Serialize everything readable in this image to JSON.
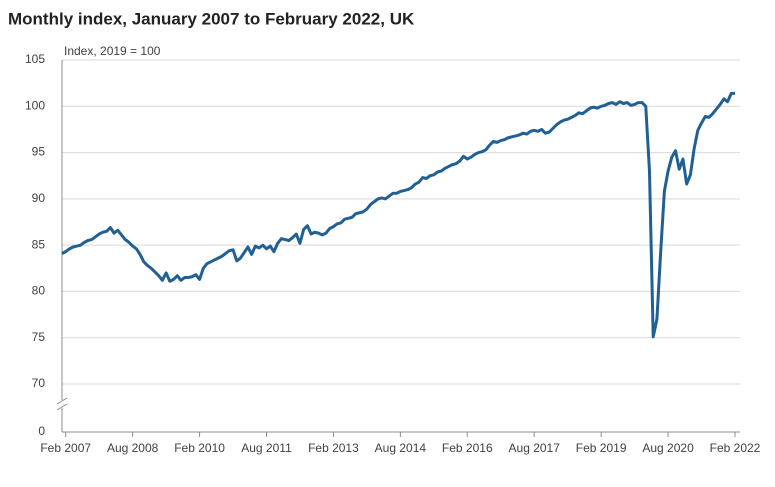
{
  "chart_data": {
    "type": "line",
    "title": "Monthly index, January 2007 to February 2022, UK",
    "y_label": "Index, 2019 = 100",
    "color": "#206095",
    "grid": true,
    "axis_break": true,
    "ylim": [
      0,
      105
    ],
    "yticks": [
      0,
      70,
      75,
      80,
      85,
      90,
      95,
      100,
      105
    ],
    "xticks": [
      {
        "value": "2007-02",
        "label": "Feb 2007"
      },
      {
        "value": "2008-08",
        "label": "Aug 2008"
      },
      {
        "value": "2010-02",
        "label": "Feb 2010"
      },
      {
        "value": "2011-08",
        "label": "Aug 2011"
      },
      {
        "value": "2013-02",
        "label": "Feb 2013"
      },
      {
        "value": "2014-08",
        "label": "Aug 2014"
      },
      {
        "value": "2016-02",
        "label": "Feb 2016"
      },
      {
        "value": "2017-08",
        "label": "Aug 2017"
      },
      {
        "value": "2019-02",
        "label": "Feb 2019"
      },
      {
        "value": "2020-08",
        "label": "Aug 2020"
      },
      {
        "value": "2022-02",
        "label": "Feb 2022"
      }
    ],
    "x": [
      "2007-01",
      "2007-02",
      "2007-03",
      "2007-04",
      "2007-05",
      "2007-06",
      "2007-07",
      "2007-08",
      "2007-09",
      "2007-10",
      "2007-11",
      "2007-12",
      "2008-01",
      "2008-02",
      "2008-03",
      "2008-04",
      "2008-05",
      "2008-06",
      "2008-07",
      "2008-08",
      "2008-09",
      "2008-10",
      "2008-11",
      "2008-12",
      "2009-01",
      "2009-02",
      "2009-03",
      "2009-04",
      "2009-05",
      "2009-06",
      "2009-07",
      "2009-08",
      "2009-09",
      "2009-10",
      "2009-11",
      "2009-12",
      "2010-01",
      "2010-02",
      "2010-03",
      "2010-04",
      "2010-05",
      "2010-06",
      "2010-07",
      "2010-08",
      "2010-09",
      "2010-10",
      "2010-11",
      "2010-12",
      "2011-01",
      "2011-02",
      "2011-03",
      "2011-04",
      "2011-05",
      "2011-06",
      "2011-07",
      "2011-08",
      "2011-09",
      "2011-10",
      "2011-11",
      "2011-12",
      "2012-01",
      "2012-02",
      "2012-03",
      "2012-04",
      "2012-05",
      "2012-06",
      "2012-07",
      "2012-08",
      "2012-09",
      "2012-10",
      "2012-11",
      "2012-12",
      "2013-01",
      "2013-02",
      "2013-03",
      "2013-04",
      "2013-05",
      "2013-06",
      "2013-07",
      "2013-08",
      "2013-09",
      "2013-10",
      "2013-11",
      "2013-12",
      "2014-01",
      "2014-02",
      "2014-03",
      "2014-04",
      "2014-05",
      "2014-06",
      "2014-07",
      "2014-08",
      "2014-09",
      "2014-10",
      "2014-11",
      "2014-12",
      "2015-01",
      "2015-02",
      "2015-03",
      "2015-04",
      "2015-05",
      "2015-06",
      "2015-07",
      "2015-08",
      "2015-09",
      "2015-10",
      "2015-11",
      "2015-12",
      "2016-01",
      "2016-02",
      "2016-03",
      "2016-04",
      "2016-05",
      "2016-06",
      "2016-07",
      "2016-08",
      "2016-09",
      "2016-10",
      "2016-11",
      "2016-12",
      "2017-01",
      "2017-02",
      "2017-03",
      "2017-04",
      "2017-05",
      "2017-06",
      "2017-07",
      "2017-08",
      "2017-09",
      "2017-10",
      "2017-11",
      "2017-12",
      "2018-01",
      "2018-02",
      "2018-03",
      "2018-04",
      "2018-05",
      "2018-06",
      "2018-07",
      "2018-08",
      "2018-09",
      "2018-10",
      "2018-11",
      "2018-12",
      "2019-01",
      "2019-02",
      "2019-03",
      "2019-04",
      "2019-05",
      "2019-06",
      "2019-07",
      "2019-08",
      "2019-09",
      "2019-10",
      "2019-11",
      "2019-12",
      "2020-01",
      "2020-02",
      "2020-03",
      "2020-04",
      "2020-05",
      "2020-06",
      "2020-07",
      "2020-08",
      "2020-09",
      "2020-10",
      "2020-11",
      "2020-12",
      "2021-01",
      "2021-02",
      "2021-03",
      "2021-04",
      "2021-05",
      "2021-06",
      "2021-07",
      "2021-08",
      "2021-09",
      "2021-10",
      "2021-11",
      "2021-12",
      "2022-01",
      "2022-02"
    ],
    "values": [
      84.1,
      84.3,
      84.6,
      84.8,
      84.9,
      85.0,
      85.3,
      85.5,
      85.6,
      85.9,
      86.2,
      86.4,
      86.5,
      86.9,
      86.3,
      86.6,
      86.1,
      85.6,
      85.3,
      84.9,
      84.6,
      84.0,
      83.2,
      82.8,
      82.5,
      82.1,
      81.7,
      81.2,
      82.0,
      81.1,
      81.3,
      81.7,
      81.2,
      81.5,
      81.5,
      81.6,
      81.8,
      81.3,
      82.5,
      83.0,
      83.2,
      83.4,
      83.6,
      83.8,
      84.1,
      84.4,
      84.5,
      83.3,
      83.6,
      84.2,
      84.8,
      84.0,
      84.9,
      84.7,
      85.0,
      84.6,
      84.9,
      84.3,
      85.2,
      85.7,
      85.6,
      85.5,
      85.8,
      86.2,
      85.2,
      86.7,
      87.1,
      86.2,
      86.4,
      86.3,
      86.1,
      86.3,
      86.8,
      87.0,
      87.3,
      87.4,
      87.8,
      87.9,
      88.0,
      88.4,
      88.5,
      88.6,
      88.9,
      89.4,
      89.7,
      90.0,
      90.1,
      90.0,
      90.3,
      90.6,
      90.6,
      90.8,
      90.9,
      91.0,
      91.2,
      91.6,
      91.8,
      92.3,
      92.2,
      92.5,
      92.6,
      92.9,
      93.0,
      93.3,
      93.5,
      93.7,
      93.8,
      94.1,
      94.6,
      94.3,
      94.5,
      94.8,
      95.0,
      95.1,
      95.3,
      95.8,
      96.2,
      96.1,
      96.3,
      96.4,
      96.6,
      96.7,
      96.8,
      96.9,
      97.1,
      97.0,
      97.3,
      97.4,
      97.3,
      97.5,
      97.1,
      97.2,
      97.6,
      98.0,
      98.3,
      98.5,
      98.6,
      98.8,
      99.0,
      99.3,
      99.2,
      99.5,
      99.8,
      99.9,
      99.8,
      100.0,
      100.1,
      100.3,
      100.4,
      100.2,
      100.5,
      100.3,
      100.4,
      100.1,
      100.2,
      100.4,
      100.4,
      100.0,
      93.0,
      75.1,
      77.0,
      84.2,
      90.8,
      93.0,
      94.5,
      95.2,
      93.2,
      94.3,
      91.6,
      92.6,
      95.4,
      97.4,
      98.2,
      98.9,
      98.8,
      99.2,
      99.7,
      100.2,
      100.8,
      100.5,
      101.4,
      101.4
    ]
  }
}
